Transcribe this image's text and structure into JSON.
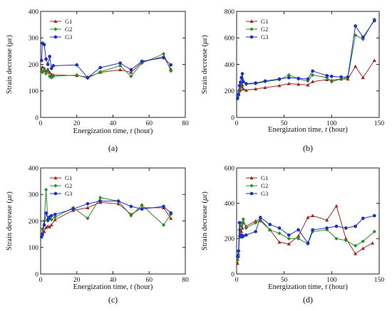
{
  "chart_data": [
    {
      "type": "line",
      "panel_label": "(a)",
      "xlabel_prefix": "Energization time, ",
      "xlabel_var": "t",
      "xlabel_suffix": " (hour)",
      "ylabel_prefix": "Strain decrease  (",
      "ylabel_var": "με",
      "ylabel_suffix": ")",
      "xlim": [
        0,
        80
      ],
      "xticks": [
        0,
        20,
        40,
        60,
        80
      ],
      "ylim": [
        0,
        400
      ],
      "yticks": [
        0,
        100,
        200,
        300,
        400
      ],
      "legend_position": "top-left",
      "series": [
        {
          "name": "G1",
          "color": "#9b2a1e",
          "marker": "triangle",
          "x": [
            0.5,
            1,
            2,
            3,
            4,
            5,
            6,
            7,
            20,
            26,
            33,
            44,
            50,
            56,
            68,
            72
          ],
          "y": [
            180,
            190,
            178,
            175,
            182,
            170,
            162,
            160,
            158,
            152,
            170,
            180,
            170,
            208,
            230,
            182
          ]
        },
        {
          "name": "G2",
          "color": "#2c8a2c",
          "marker": "diamond",
          "x": [
            0.5,
            1,
            2,
            3,
            4,
            5,
            6,
            7,
            20,
            26,
            33,
            44,
            50,
            56,
            68,
            72
          ],
          "y": [
            175,
            170,
            185,
            165,
            175,
            155,
            150,
            155,
            160,
            148,
            172,
            195,
            155,
            205,
            240,
            175
          ]
        },
        {
          "name": "G3",
          "color": "#1f2fc4",
          "marker": "circle",
          "x": [
            0.5,
            1,
            2,
            3,
            4,
            5,
            6,
            7,
            20,
            26,
            33,
            44,
            50,
            56,
            68,
            72
          ],
          "y": [
            215,
            280,
            275,
            220,
            200,
            230,
            185,
            195,
            198,
            150,
            188,
            205,
            180,
            212,
            225,
            198
          ]
        }
      ]
    },
    {
      "type": "line",
      "panel_label": "(b)",
      "xlabel_prefix": "Energization time, ",
      "xlabel_var": "t",
      "xlabel_suffix": " (hour)",
      "ylabel_prefix": "Strain decrease  (",
      "ylabel_var": "με",
      "ylabel_suffix": ")",
      "xlim": [
        0,
        150
      ],
      "xticks": [
        0,
        50,
        100,
        150
      ],
      "ylim": [
        0,
        800
      ],
      "yticks": [
        0,
        200,
        400,
        600,
        800
      ],
      "legend_position": "top-left",
      "series": [
        {
          "name": "G1",
          "color": "#9b2a1e",
          "marker": "triangle",
          "x": [
            1,
            2,
            3,
            4,
            5,
            6,
            7,
            10,
            20,
            30,
            45,
            55,
            65,
            75,
            80,
            95,
            100,
            110,
            117,
            125,
            133,
            145
          ],
          "y": [
            150,
            175,
            200,
            210,
            230,
            245,
            215,
            205,
            215,
            225,
            240,
            255,
            250,
            245,
            270,
            285,
            280,
            290,
            290,
            385,
            300,
            430
          ]
        },
        {
          "name": "G2",
          "color": "#2c8a2c",
          "marker": "diamond",
          "x": [
            1,
            2,
            3,
            4,
            5,
            6,
            7,
            10,
            20,
            30,
            45,
            55,
            65,
            75,
            80,
            95,
            100,
            110,
            117,
            125,
            133,
            145
          ],
          "y": [
            140,
            165,
            210,
            230,
            260,
            290,
            270,
            250,
            255,
            270,
            285,
            320,
            290,
            275,
            320,
            300,
            270,
            290,
            300,
            620,
            590,
            740
          ]
        },
        {
          "name": "G3",
          "color": "#1f2fc4",
          "marker": "circle",
          "x": [
            1,
            2,
            3,
            4,
            5,
            6,
            7,
            10,
            20,
            30,
            45,
            55,
            65,
            75,
            80,
            95,
            100,
            110,
            117,
            125,
            133,
            145
          ],
          "y": [
            145,
            175,
            240,
            265,
            300,
            330,
            270,
            255,
            260,
            275,
            290,
            300,
            295,
            290,
            350,
            315,
            310,
            305,
            305,
            690,
            605,
            730
          ]
        }
      ]
    },
    {
      "type": "line",
      "panel_label": "(c)",
      "xlabel_prefix": "Energization time, ",
      "xlabel_var": "t",
      "xlabel_suffix": " (hour)",
      "ylabel_prefix": "Strain decrease  (",
      "ylabel_var": "με",
      "ylabel_suffix": ")",
      "xlim": [
        0,
        80
      ],
      "xticks": [
        0,
        20,
        40,
        60,
        80
      ],
      "ylim": [
        0,
        400
      ],
      "yticks": [
        0,
        100,
        200,
        300,
        400
      ],
      "legend_position": "top-left",
      "series": [
        {
          "name": "G1",
          "color": "#9b2a1e",
          "marker": "triangle",
          "x": [
            0.5,
            1,
            2,
            3,
            4,
            5,
            6,
            8,
            18,
            26,
            33,
            43,
            50,
            56,
            68,
            72
          ],
          "y": [
            145,
            150,
            160,
            175,
            180,
            178,
            185,
            205,
            240,
            250,
            270,
            265,
            225,
            250,
            250,
            210
          ]
        },
        {
          "name": "G2",
          "color": "#2c8a2c",
          "marker": "diamond",
          "x": [
            0.5,
            1,
            2,
            3,
            4,
            5,
            6,
            8,
            18,
            26,
            33,
            43,
            50,
            56,
            68,
            72
          ],
          "y": [
            150,
            170,
            200,
            318,
            200,
            210,
            205,
            215,
            250,
            210,
            288,
            275,
            220,
            260,
            185,
            225
          ]
        },
        {
          "name": "G3",
          "color": "#1f2fc4",
          "marker": "circle",
          "x": [
            0.5,
            1,
            2,
            3,
            4,
            5,
            6,
            8,
            18,
            26,
            33,
            43,
            50,
            56,
            68,
            72
          ],
          "y": [
            140,
            150,
            185,
            230,
            205,
            215,
            220,
            225,
            245,
            265,
            275,
            275,
            255,
            245,
            255,
            230
          ]
        }
      ]
    },
    {
      "type": "line",
      "panel_label": "(d)",
      "xlabel_prefix": "Energization time, ",
      "xlabel_var": "t",
      "xlabel_suffix": " (hour)",
      "ylabel_prefix": "Strain decrease  (",
      "ylabel_var": "με",
      "ylabel_suffix": ")",
      "xlim": [
        0,
        150
      ],
      "xticks": [
        0,
        50,
        100,
        150
      ],
      "ylim": [
        0,
        600
      ],
      "yticks": [
        0,
        200,
        400,
        600
      ],
      "legend_position": "top-left",
      "series": [
        {
          "name": "G1",
          "color": "#9b2a1e",
          "marker": "triangle",
          "x": [
            1,
            2,
            3,
            4,
            5,
            6,
            7,
            10,
            20,
            25,
            35,
            45,
            55,
            65,
            75,
            80,
            95,
            105,
            115,
            125,
            133,
            143
          ],
          "y": [
            60,
            100,
            220,
            250,
            240,
            260,
            290,
            270,
            300,
            310,
            250,
            180,
            170,
            215,
            320,
            330,
            305,
            385,
            200,
            115,
            145,
            175
          ]
        },
        {
          "name": "G2",
          "color": "#2c8a2c",
          "marker": "diamond",
          "x": [
            1,
            2,
            3,
            4,
            5,
            6,
            7,
            10,
            20,
            25,
            35,
            45,
            55,
            65,
            75,
            80,
            95,
            105,
            115,
            125,
            133,
            145
          ],
          "y": [
            80,
            110,
            250,
            290,
            270,
            290,
            310,
            260,
            290,
            300,
            250,
            230,
            200,
            200,
            170,
            240,
            250,
            200,
            190,
            160,
            185,
            240
          ]
        },
        {
          "name": "G3",
          "color": "#1f2fc4",
          "marker": "circle",
          "x": [
            1,
            2,
            3,
            4,
            5,
            6,
            7,
            10,
            20,
            25,
            35,
            45,
            55,
            65,
            75,
            80,
            95,
            105,
            115,
            125,
            133,
            145
          ],
          "y": [
            100,
            130,
            290,
            210,
            220,
            210,
            215,
            220,
            240,
            320,
            280,
            260,
            220,
            250,
            175,
            250,
            260,
            270,
            260,
            270,
            315,
            330
          ]
        }
      ]
    }
  ]
}
